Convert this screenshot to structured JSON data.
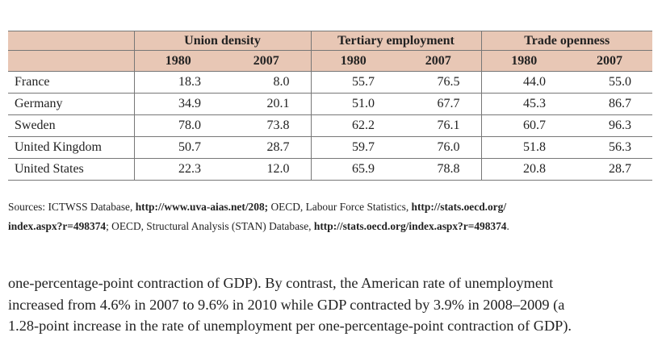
{
  "table": {
    "groups": [
      "Union density",
      "Tertiary employment",
      "Trade openness"
    ],
    "years": [
      "1980",
      "2007",
      "1980",
      "2007",
      "1980",
      "2007"
    ],
    "rows": [
      [
        "France",
        "18.3",
        "8.0",
        "55.7",
        "76.5",
        "44.0",
        "55.0"
      ],
      [
        "Germany",
        "34.9",
        "20.1",
        "51.0",
        "67.7",
        "45.3",
        "86.7"
      ],
      [
        "Sweden",
        "78.0",
        "73.8",
        "62.2",
        "76.1",
        "60.7",
        "96.3"
      ],
      [
        "United Kingdom",
        "50.7",
        "28.7",
        "59.7",
        "76.0",
        "51.8",
        "56.3"
      ],
      [
        "United States",
        "22.3",
        "12.0",
        "65.9",
        "78.8",
        "20.8",
        "28.7"
      ]
    ]
  },
  "sources": {
    "lines": [
      [
        {
          "text": "Sources: ICTWSS Database, ",
          "bold": false
        },
        {
          "text": "http://www.uva-aias.net/208;",
          "bold": true
        },
        {
          "text": " OECD, Labour Force Statistics, ",
          "bold": false
        },
        {
          "text": "http://stats.oecd.org/",
          "bold": true
        }
      ],
      [
        {
          "text": "index.aspx?r=498374",
          "bold": true
        },
        {
          "text": "; OECD, Structural Analysis (STAN) Database, ",
          "bold": false
        },
        {
          "text": "http://stats.oecd.org/index.aspx?r=498374",
          "bold": true
        },
        {
          "text": ".",
          "bold": false
        }
      ]
    ]
  },
  "body": {
    "lines": [
      "one-percentage-point contraction of GDP). By contrast, the American rate of unemployment",
      "increased from 4.6% in 2007 to 9.6% in 2010 while GDP contracted by 3.9% in 2008–2009 (a",
      "1.28-point increase in the rate of unemployment per one-percentage-point contraction of GDP)."
    ]
  }
}
